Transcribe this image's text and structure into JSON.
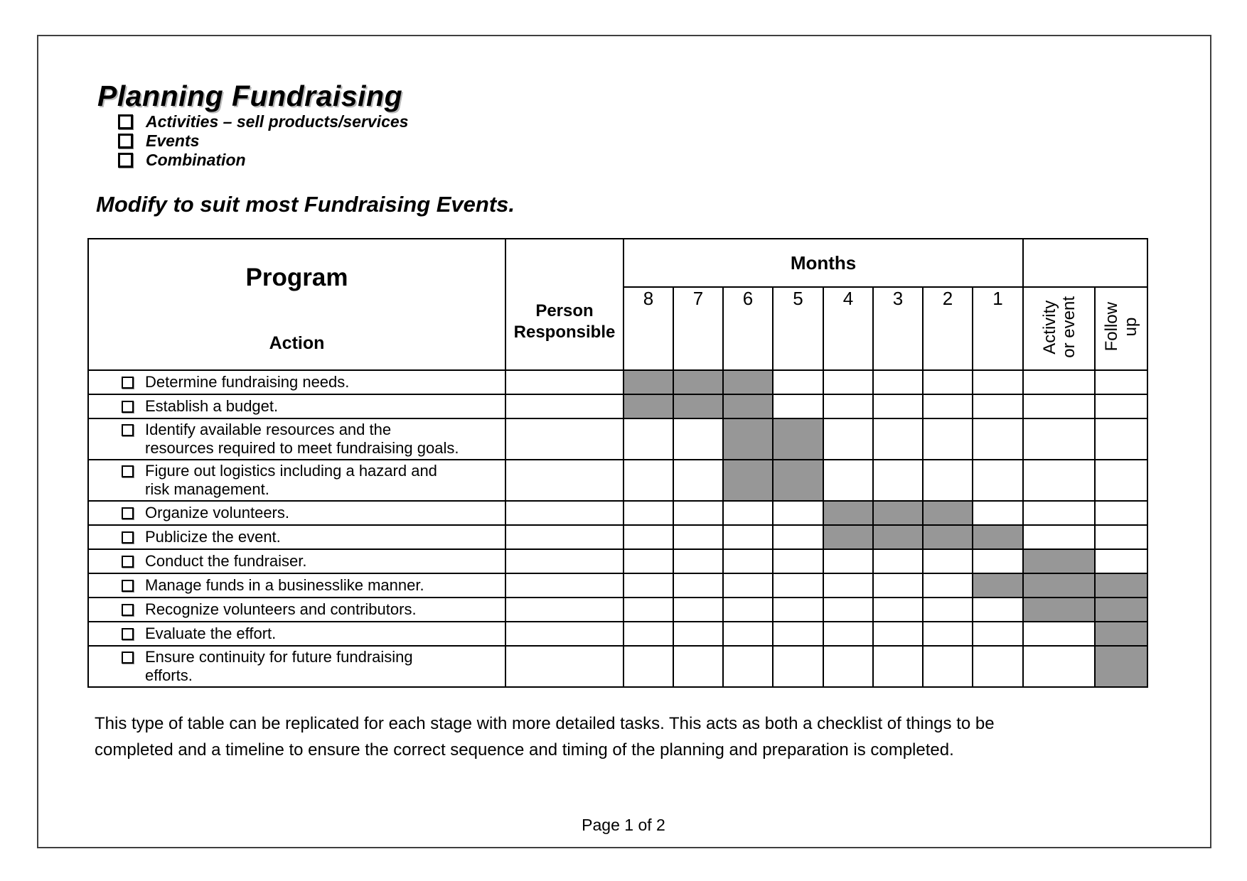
{
  "page": {
    "title": "Planning Fundraising",
    "bullets": [
      "Activities – sell products/services",
      "Events",
      "Combination"
    ],
    "subtitle": "Modify to suit most Fundraising Events.",
    "note_line1": "This type of table can be replicated for each stage with more detailed tasks.  This acts as both a checklist of things to be",
    "note_line2": "completed and a timeline to ensure the correct sequence and timing of the planning and preparation is completed.",
    "footer": "Page 1 of 2"
  },
  "table": {
    "program_header": "Program",
    "action_header": "Action",
    "person_header": {
      "line1": "Person",
      "line2": "Responsible"
    },
    "months_header": "Months",
    "month_columns": [
      "8",
      "7",
      "6",
      "5",
      "4",
      "3",
      "2",
      "1"
    ],
    "activity_header": {
      "line1": "Activity",
      "line2": "or event"
    },
    "followup_header": {
      "line1": "Follow",
      "line2": "up"
    },
    "shaded_color": "#979797",
    "rows": [
      {
        "lines": [
          "Determine fundraising needs."
        ],
        "shaded": [
          "m8",
          "m7",
          "m6"
        ]
      },
      {
        "lines": [
          "Establish a budget."
        ],
        "shaded": [
          "m8",
          "m7",
          "m6"
        ]
      },
      {
        "lines": [
          "Identify available resources and the",
          "resources required to meet fundraising goals."
        ],
        "shaded": [
          "m6",
          "m5"
        ]
      },
      {
        "lines": [
          "Figure out logistics including a hazard and",
          "risk management."
        ],
        "shaded": [
          "m6",
          "m5"
        ]
      },
      {
        "lines": [
          "Organize volunteers."
        ],
        "shaded": [
          "m4",
          "m3",
          "m2"
        ]
      },
      {
        "lines": [
          "Publicize the event."
        ],
        "shaded": [
          "m4",
          "m3",
          "m2",
          "m1"
        ]
      },
      {
        "lines": [
          "Conduct the fundraiser."
        ],
        "shaded": [
          "act"
        ]
      },
      {
        "lines": [
          "Manage funds in a businesslike manner."
        ],
        "shaded": [
          "m1",
          "act",
          "fu"
        ]
      },
      {
        "lines": [
          "Recognize volunteers and contributors."
        ],
        "shaded": [
          "act",
          "fu"
        ]
      },
      {
        "lines": [
          "Evaluate the effort."
        ],
        "shaded": [
          "fu"
        ]
      },
      {
        "lines": [
          "Ensure continuity for future fundraising",
          "efforts."
        ],
        "shaded": [
          "fu"
        ]
      }
    ]
  }
}
